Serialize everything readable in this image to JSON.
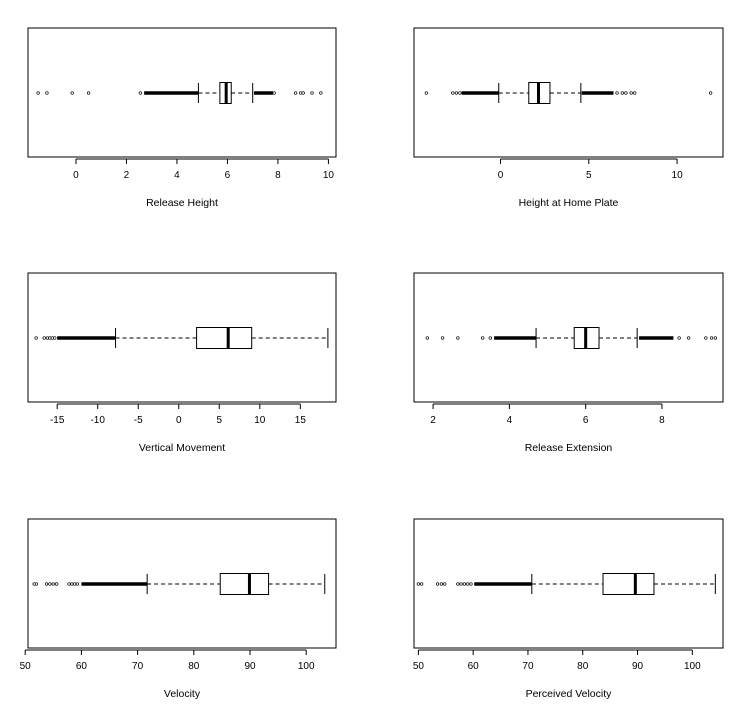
{
  "chart_data": [
    {
      "type": "boxplot",
      "orientation": "horizontal",
      "xlabel": "Release Height",
      "xlim": [
        -1.9,
        10.3
      ],
      "ticks": [
        0,
        2,
        4,
        6,
        8,
        10
      ],
      "stats": {
        "whisker_low": 4.85,
        "q1": 5.7,
        "median": 5.95,
        "q3": 6.15,
        "whisker_high": 7.0
      },
      "outliers": [
        -1.5,
        -1.15,
        -0.15,
        0.5,
        2.55,
        7.85,
        8.7,
        8.9,
        9.0,
        9.35,
        9.7
      ],
      "outlier_bands": [
        [
          2.7,
          4.85
        ],
        [
          7.05,
          7.8
        ]
      ]
    },
    {
      "type": "boxplot",
      "orientation": "horizontal",
      "xlabel": "Height at Home Plate",
      "xlim": [
        -4.9,
        12.6
      ],
      "ticks": [
        0,
        5,
        10
      ],
      "stats": {
        "whisker_low": -0.1,
        "q1": 1.6,
        "median": 2.15,
        "q3": 2.8,
        "whisker_high": 4.55
      },
      "outliers": [
        -4.2,
        -2.7,
        -2.5,
        -2.3,
        6.6,
        6.9,
        7.1,
        7.4,
        7.6,
        11.9
      ],
      "outlier_bands": [
        [
          -2.2,
          -0.1
        ],
        [
          4.6,
          6.4
        ]
      ]
    },
    {
      "type": "boxplot",
      "orientation": "horizontal",
      "xlabel": "Vertical Movement",
      "xlim": [
        -18.6,
        19.4
      ],
      "ticks": [
        -15,
        -10,
        -5,
        0,
        5,
        10,
        15
      ],
      "stats": {
        "whisker_low": -7.8,
        "q1": 2.2,
        "median": 6.1,
        "q3": 9.0,
        "whisker_high": 18.4
      },
      "outliers": [
        -17.6,
        -16.6,
        -16.2,
        -15.9,
        -15.6,
        -15.3
      ],
      "outlier_bands": [
        [
          -15.0,
          -7.8
        ]
      ]
    },
    {
      "type": "boxplot",
      "orientation": "horizontal",
      "xlabel": "Release Extension",
      "xlim": [
        1.5,
        9.6
      ],
      "ticks": [
        2,
        4,
        6,
        8
      ],
      "stats": {
        "whisker_low": 4.7,
        "q1": 5.7,
        "median": 6.0,
        "q3": 6.35,
        "whisker_high": 7.35
      },
      "outliers": [
        1.85,
        2.25,
        2.65,
        3.3,
        3.5,
        8.45,
        8.7,
        9.15,
        9.3,
        9.4
      ],
      "outlier_bands": [
        [
          3.6,
          4.7
        ],
        [
          7.4,
          8.3
        ]
      ]
    },
    {
      "type": "boxplot",
      "orientation": "horizontal",
      "xlabel": "Velocity",
      "xlim": [
        50.5,
        105.3
      ],
      "ticks": [
        50,
        60,
        70,
        80,
        90,
        100
      ],
      "stats": {
        "whisker_low": 71.7,
        "q1": 84.7,
        "median": 89.9,
        "q3": 93.3,
        "whisker_high": 103.3
      },
      "outliers": [
        51.6,
        52.0,
        53.8,
        54.4,
        55.0,
        55.6,
        57.8,
        58.3,
        58.8,
        59.3
      ],
      "outlier_bands": [
        [
          60.0,
          71.7
        ]
      ]
    },
    {
      "type": "boxplot",
      "orientation": "horizontal",
      "xlabel": "Perceived Velocity",
      "xlim": [
        49.2,
        105.6
      ],
      "ticks": [
        50,
        60,
        70,
        80,
        90,
        100
      ],
      "stats": {
        "whisker_low": 70.7,
        "q1": 83.7,
        "median": 89.6,
        "q3": 93.0,
        "whisker_high": 104.2
      },
      "outliers": [
        50.0,
        50.6,
        53.5,
        54.2,
        54.8,
        57.2,
        57.8,
        58.4,
        59.0,
        59.6
      ],
      "outlier_bands": [
        [
          60.2,
          70.7
        ]
      ]
    }
  ]
}
